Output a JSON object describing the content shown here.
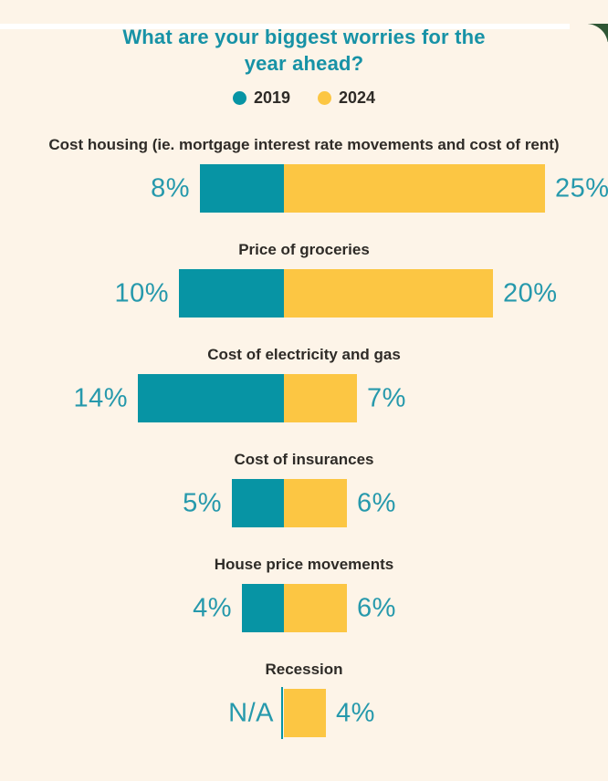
{
  "colors": {
    "background": "#FDF4E8",
    "top_strip": "#FFFFFF",
    "corner_green": "#2F5635",
    "teal_2019": "#0794A4",
    "yellow_2024": "#FCC643",
    "title_text": "#1792A6",
    "category_text": "#2E2B27",
    "value_text": "#2699AC"
  },
  "chart_data": {
    "type": "bar",
    "orientation": "diverging-horizontal",
    "title": "What are your biggest worries for the year ahead?",
    "unit": "%",
    "legend_position": "top-center",
    "categories": [
      "Cost housing (ie. mortgage interest rate movements and cost of rent)",
      "Price of groceries",
      "Cost of electricity and gas",
      "Cost of insurances",
      "House price movements",
      "Recession"
    ],
    "series": [
      {
        "name": "2019",
        "side": "left",
        "color": "#0794A4",
        "values": [
          8,
          10,
          14,
          5,
          4,
          null
        ],
        "labels": [
          "8%",
          "10%",
          "14%",
          "5%",
          "4%",
          "N/A"
        ]
      },
      {
        "name": "2024",
        "side": "right",
        "color": "#FCC643",
        "values": [
          25,
          20,
          7,
          6,
          6,
          4
        ],
        "labels": [
          "25%",
          "20%",
          "7%",
          "6%",
          "6%",
          "4%"
        ]
      }
    ]
  }
}
